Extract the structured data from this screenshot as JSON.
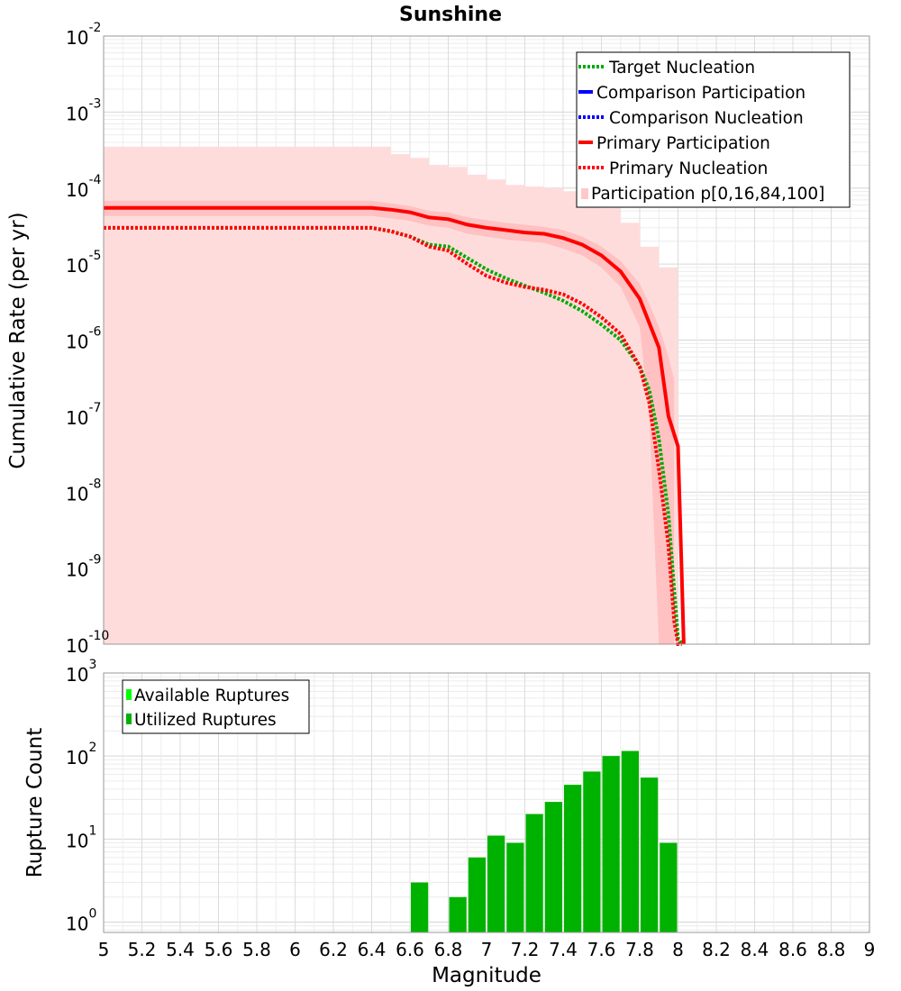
{
  "chart_data": [
    {
      "type": "line",
      "title": "Sunshine",
      "xlabel": "",
      "ylabel": "Cumulative Rate (per yr)",
      "xlim": [
        5,
        9
      ],
      "ylim": [
        1e-10,
        0.01
      ],
      "yscale": "log",
      "y_tick_exponents": [
        "-2",
        "-3",
        "-4",
        "-5",
        "-6",
        "-7",
        "-8",
        "-9",
        "-10"
      ],
      "grid": true,
      "legend_position": "top-right",
      "legend": [
        {
          "label": "Target Nucleation",
          "color": "#00aa00",
          "style": "dotted"
        },
        {
          "label": "Comparison Participation",
          "color": "#0000ff",
          "style": "solid"
        },
        {
          "label": "Comparison Nucleation",
          "color": "#0000ff",
          "style": "dotted"
        },
        {
          "label": "Primary Participation",
          "color": "#ff0000",
          "style": "solid"
        },
        {
          "label": "Primary Nucleation",
          "color": "#ff0000",
          "style": "dotted"
        },
        {
          "label": "Participation p[0,16,84,100]",
          "color": "#ffc8c8",
          "style": "band"
        }
      ],
      "series": [
        {
          "name": "Target Nucleation",
          "color": "#00aa00",
          "style": "dotted",
          "x": [
            5.0,
            6.4,
            6.5,
            6.6,
            6.7,
            6.8,
            6.9,
            7.0,
            7.1,
            7.2,
            7.3,
            7.4,
            7.5,
            7.6,
            7.7,
            7.8,
            7.85,
            7.9,
            7.95,
            7.98,
            8.0,
            8.02
          ],
          "y": [
            3e-05,
            3e-05,
            2.7e-05,
            2.3e-05,
            1.8e-05,
            1.7e-05,
            1.2e-05,
            8.5e-06,
            6.5e-06,
            5.2e-06,
            4.2e-06,
            3.3e-06,
            2.4e-06,
            1.6e-06,
            1e-06,
            4.5e-07,
            2.2e-07,
            5e-08,
            5e-09,
            5e-10,
            1.2e-10,
            1e-10
          ]
        },
        {
          "name": "Primary Participation",
          "color": "#ff0000",
          "style": "solid",
          "x": [
            5.0,
            6.4,
            6.5,
            6.6,
            6.7,
            6.8,
            6.9,
            7.0,
            7.1,
            7.2,
            7.3,
            7.4,
            7.5,
            7.6,
            7.7,
            7.8,
            7.9,
            7.95,
            8.0,
            8.02,
            8.03
          ],
          "y": [
            5.5e-05,
            5.5e-05,
            5.2e-05,
            4.8e-05,
            4.1e-05,
            3.9e-05,
            3.3e-05,
            3e-05,
            2.8e-05,
            2.6e-05,
            2.5e-05,
            2.2e-05,
            1.8e-05,
            1.3e-05,
            8e-06,
            3.5e-06,
            8e-07,
            1e-07,
            4e-08,
            8e-10,
            1e-10
          ]
        },
        {
          "name": "Primary Nucleation",
          "color": "#ff0000",
          "style": "dotted",
          "x": [
            5.0,
            6.4,
            6.5,
            6.6,
            6.7,
            6.8,
            6.9,
            7.0,
            7.1,
            7.2,
            7.3,
            7.4,
            7.5,
            7.6,
            7.7,
            7.8,
            7.85,
            7.9,
            7.95,
            7.98,
            8.0,
            8.02
          ],
          "y": [
            3e-05,
            3e-05,
            2.7e-05,
            2.3e-05,
            1.7e-05,
            1.5e-05,
            1e-05,
            7e-06,
            5.7e-06,
            5e-06,
            4.6e-06,
            4e-06,
            3e-06,
            2e-06,
            1.2e-06,
            4.5e-07,
            1.5e-07,
            2e-08,
            2e-09,
            2e-10,
            1e-10,
            1e-10
          ]
        }
      ],
      "band_outer": {
        "x": [
          5.0,
          6.4,
          6.5,
          6.6,
          6.7,
          6.8,
          6.9,
          7.0,
          7.1,
          7.2,
          7.3,
          7.4,
          7.5,
          7.6,
          7.7,
          7.8,
          7.9,
          8.0
        ],
        "upper": [
          0.00035,
          0.00035,
          0.00028,
          0.00025,
          0.0002,
          0.00019,
          0.00015,
          0.00013,
          0.00011,
          0.000105,
          0.0001,
          9e-05,
          7e-05,
          5.5e-05,
          3.5e-05,
          1.7e-05,
          9e-06,
          4e-06
        ],
        "lower": [
          1e-10,
          1e-10,
          1e-10,
          1e-10,
          1e-10,
          1e-10,
          1e-10,
          1e-10,
          1e-10,
          1e-10,
          1e-10,
          1e-10,
          1e-10,
          1e-10,
          1e-10,
          1e-10,
          1e-10,
          1e-10
        ]
      },
      "band_inner": {
        "x": [
          5.0,
          6.4,
          6.5,
          6.6,
          6.7,
          6.8,
          6.9,
          7.0,
          7.1,
          7.2,
          7.3,
          7.4,
          7.5,
          7.6,
          7.7,
          7.8,
          7.85,
          7.9,
          7.95,
          7.98
        ],
        "upper": [
          6.8e-05,
          6.8e-05,
          6.3e-05,
          5.8e-05,
          5e-05,
          4.8e-05,
          4.1e-05,
          3.8e-05,
          3.5e-05,
          3.3e-05,
          3.1e-05,
          2.8e-05,
          2.3e-05,
          1.7e-05,
          1.1e-05,
          5.5e-06,
          3e-06,
          1.5e-06,
          6e-07,
          3e-07
        ],
        "lower": [
          4.3e-05,
          4.3e-05,
          4e-05,
          3.7e-05,
          3.2e-05,
          3e-05,
          2.5e-05,
          2.3e-05,
          2.1e-05,
          2e-05,
          1.9e-05,
          1.6e-05,
          1.3e-05,
          9e-06,
          5e-06,
          1.5e-06,
          1e-07,
          1e-10,
          1e-10,
          1e-10
        ]
      }
    },
    {
      "type": "bar",
      "xlabel": "Magnitude",
      "ylabel": "Rupture Count",
      "xlim": [
        5,
        9
      ],
      "ylim": [
        0.75,
        1000
      ],
      "yscale": "log",
      "y_tick_exponents": [
        "3",
        "2",
        "1",
        "0"
      ],
      "x_ticks": [
        "5",
        "5.2",
        "5.4",
        "5.6",
        "5.8",
        "6",
        "6.2",
        "6.4",
        "6.6",
        "6.8",
        "7",
        "7.2",
        "7.4",
        "7.6",
        "7.8",
        "8",
        "8.2",
        "8.4",
        "8.6",
        "8.8",
        "9"
      ],
      "grid": true,
      "legend_position": "top-left",
      "legend": [
        {
          "label": "Available Ruptures",
          "color": "#00ff00"
        },
        {
          "label": "Utilized Ruptures",
          "color": "#00b200"
        }
      ],
      "bin_width": 0.1,
      "bin_centers": [
        6.65,
        6.75,
        6.85,
        6.95,
        7.05,
        7.15,
        7.25,
        7.35,
        7.45,
        7.55,
        7.65,
        7.75,
        7.85,
        7.95
      ],
      "values": [
        3,
        0,
        2,
        6,
        11,
        9,
        20,
        28,
        45,
        65,
        100,
        115,
        55,
        9
      ]
    }
  ]
}
